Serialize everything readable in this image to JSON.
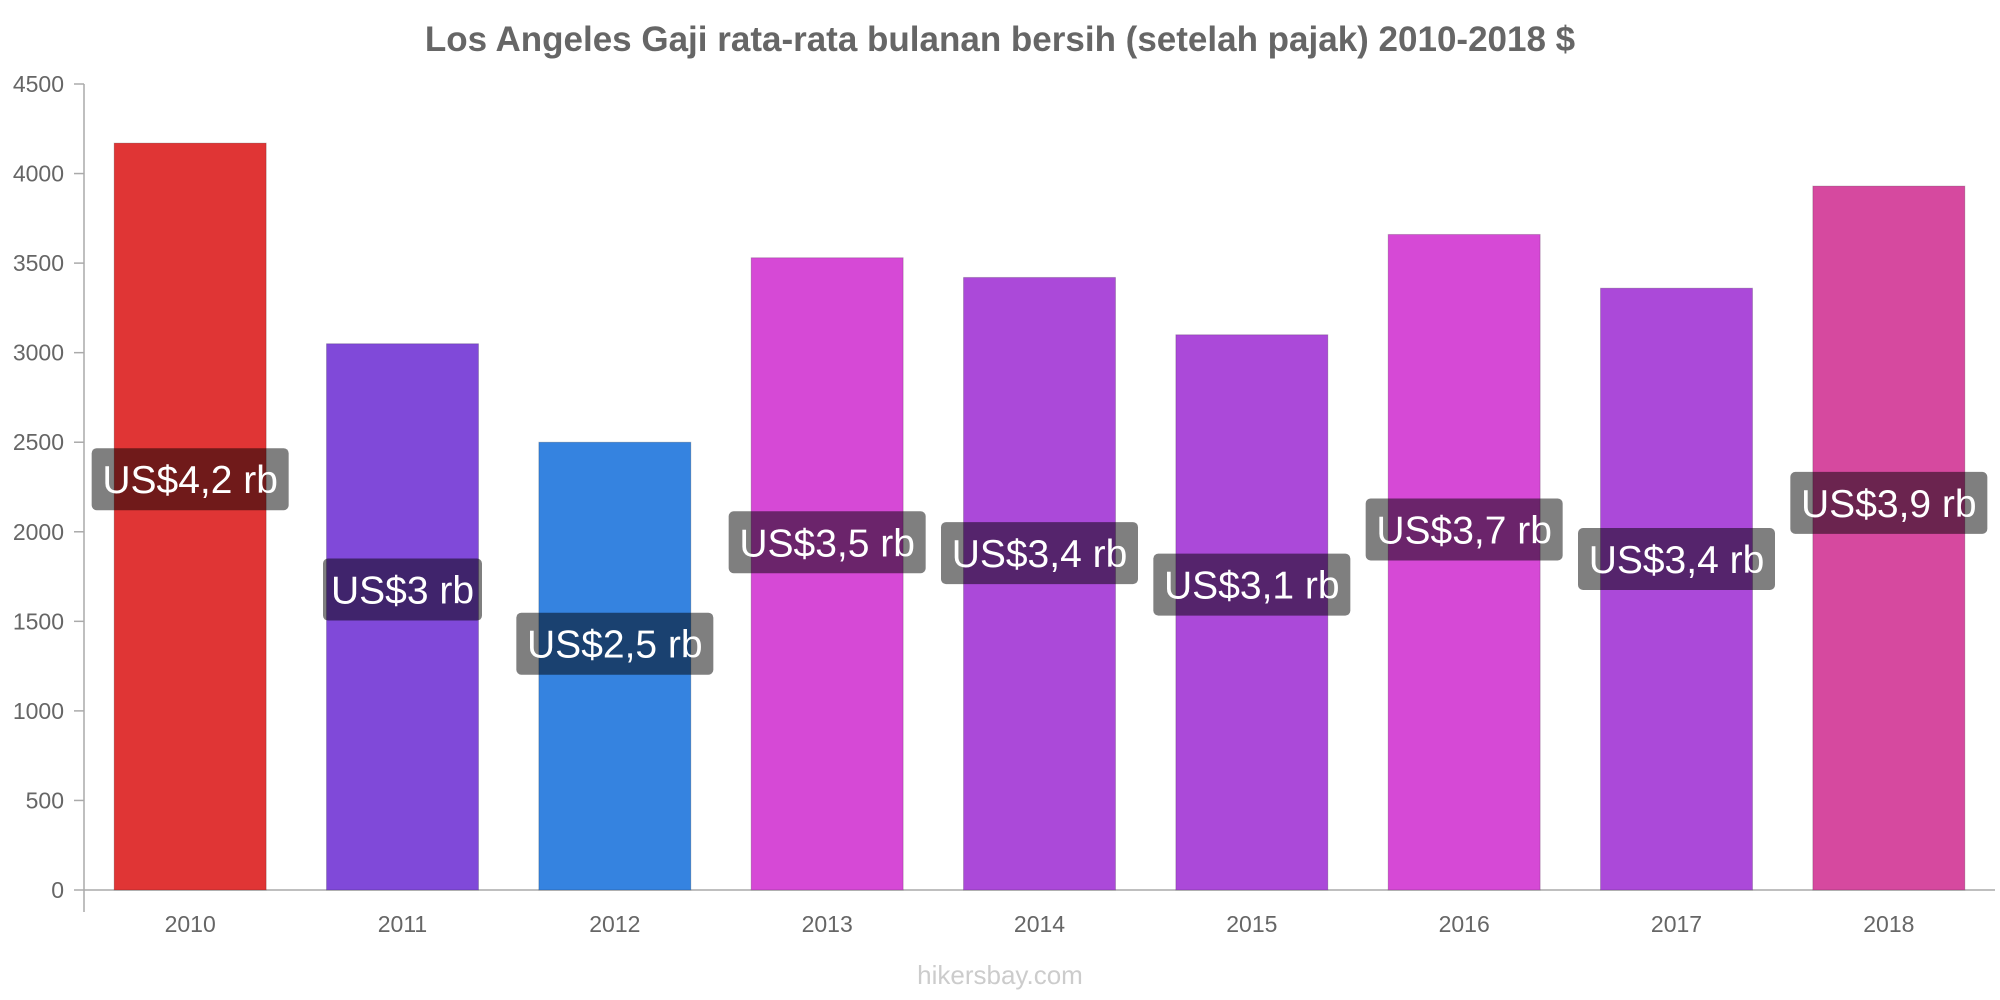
{
  "chart_data": {
    "type": "bar",
    "title": "Los Angeles Gaji rata-rata bulanan bersih (setelah pajak) 2010-2018 $",
    "categories": [
      "2010",
      "2011",
      "2012",
      "2013",
      "2014",
      "2015",
      "2016",
      "2017",
      "2018"
    ],
    "values": [
      4170,
      3050,
      2500,
      3530,
      3420,
      3100,
      3660,
      3360,
      3930
    ],
    "data_labels": [
      "US$4,2 rb",
      "US$3 rb",
      "US$2,5 rb",
      "US$3,5 rb",
      "US$3,4 rb",
      "US$3,1 rb",
      "US$3,7 rb",
      "US$3,4 rb",
      "US$3,9 rb"
    ],
    "colors": [
      "#e03535",
      "#8049d9",
      "#3583e0",
      "#d649d6",
      "#ab49d9",
      "#ab49d9",
      "#d649d6",
      "#ab49d9",
      "#d6499f"
    ],
    "ylim": [
      0,
      4500
    ],
    "yticks": [
      "0",
      "500",
      "1000",
      "1500",
      "2000",
      "2500",
      "3000",
      "3500",
      "4000",
      "4500"
    ],
    "xlabel": "",
    "ylabel": "",
    "grid": false,
    "legend": "none"
  },
  "watermark": "hikersbay.com"
}
